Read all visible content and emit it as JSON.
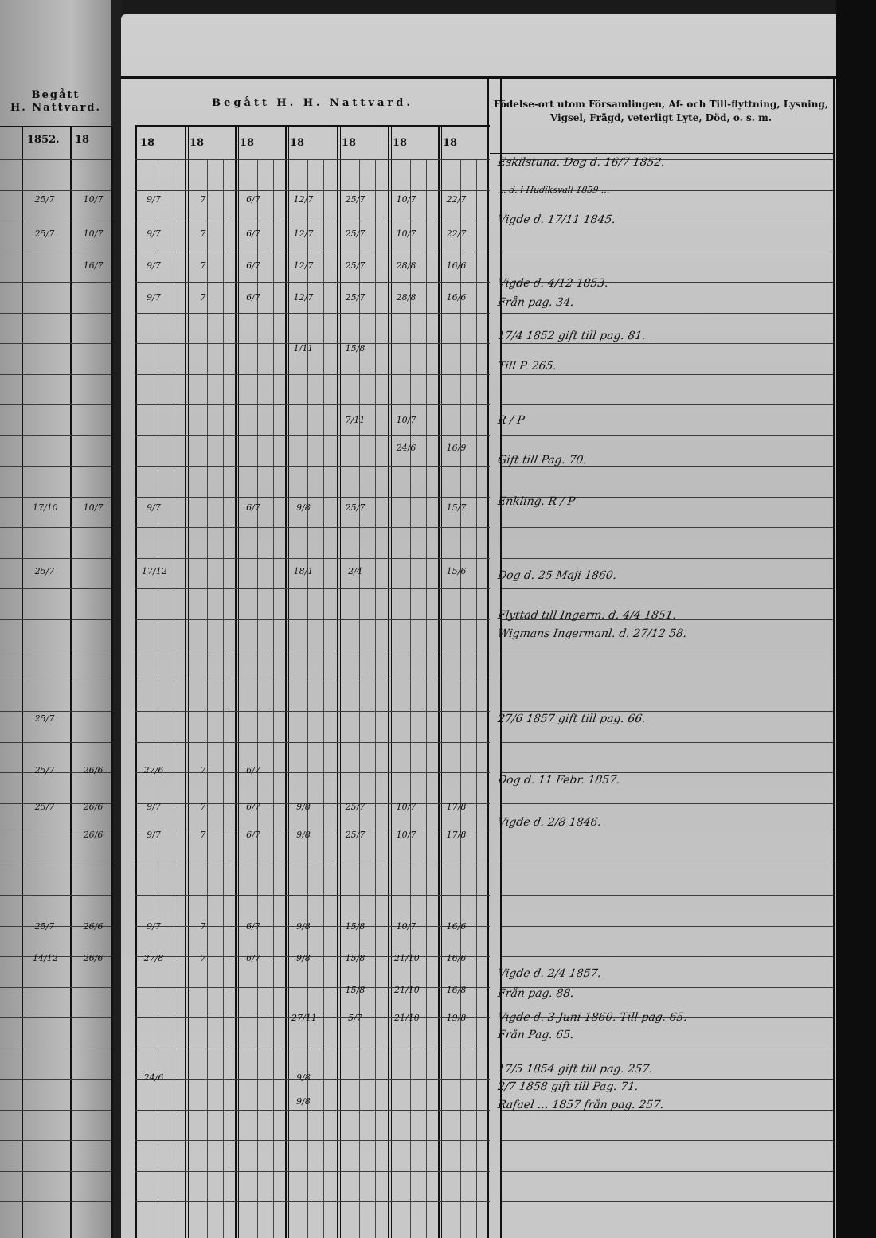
{
  "left_page": {
    "header_line1": "Begått",
    "header_line2": "H. Nattvard.",
    "years": [
      "1852.",
      "18"
    ]
  },
  "right_page": {
    "header": "Begått H. H. Nattvard.",
    "years": [
      "18",
      "18",
      "18",
      "18",
      "18",
      "18",
      "18"
    ],
    "notes_header_line1": "Födelse-ort utom Församlingen, Af- och Till-flyttning, Lysning,",
    "notes_header_line2": "Vigsel, Frägd, veterligt Lyte, Död, o. s. m."
  },
  "grid_rows": [
    {
      "left": [
        "25/7",
        "10/7"
      ],
      "cells": [
        "9/7",
        "7",
        "6/7",
        "12/7",
        "25/7",
        "10/7",
        "22/7"
      ]
    },
    {
      "left": [
        "25/7",
        "10/7"
      ],
      "cells": [
        "9/7",
        "7",
        "6/7",
        "12/7",
        "25/7",
        "10/7",
        "22/7"
      ]
    },
    {
      "left": [
        "",
        "16/7"
      ],
      "cells": [
        "9/7",
        "7",
        "6/7",
        "12/7",
        "25/7",
        "28/8",
        "16/6"
      ]
    },
    {
      "left": [
        "",
        ""
      ],
      "cells": [
        "9/7",
        "7",
        "6/7",
        "12/7",
        "25/7",
        "28/8",
        "16/6"
      ]
    },
    {
      "left": [
        "",
        ""
      ],
      "cells": [
        "",
        "",
        "",
        "1/11",
        "15/8",
        "",
        ""
      ]
    },
    {
      "left": [
        "",
        ""
      ],
      "cells": [
        "",
        "",
        "",
        "",
        "7/11",
        "10/7",
        ""
      ]
    },
    {
      "left": [
        "",
        ""
      ],
      "cells": [
        "",
        "",
        "",
        "",
        "",
        "24/6",
        "16/9"
      ]
    },
    {
      "left": [
        "17/10",
        "10/7"
      ],
      "cells": [
        "9/7",
        "",
        "6/7",
        "9/8",
        "25/7",
        "",
        "15/7"
      ]
    },
    {
      "left": [
        "25/7",
        ""
      ],
      "cells": [
        "17/12",
        "",
        "",
        "18/1",
        "2/4",
        "",
        "15/6"
      ]
    },
    {
      "left": [
        "25/7",
        ""
      ],
      "cells": [
        "",
        "",
        "",
        "",
        "",
        "",
        ""
      ]
    },
    {
      "left": [
        "25/7",
        "26/6"
      ],
      "cells": [
        "27/6",
        "7",
        "6/7",
        "",
        "",
        "",
        ""
      ]
    },
    {
      "left": [
        "25/7",
        "26/6"
      ],
      "cells": [
        "9/7",
        "7",
        "6/7",
        "9/8",
        "25/7",
        "10/7",
        "17/8"
      ]
    },
    {
      "left": [
        "",
        "26/6"
      ],
      "cells": [
        "9/7",
        "7",
        "6/7",
        "9/8",
        "25/7",
        "10/7",
        "17/8"
      ]
    },
    {
      "left": [
        "25/7",
        "26/6"
      ],
      "cells": [
        "9/7",
        "7",
        "6/7",
        "9/8",
        "15/8",
        "10/7",
        "16/6"
      ]
    },
    {
      "left": [
        "14/12",
        "26/6"
      ],
      "cells": [
        "27/8",
        "7",
        "6/7",
        "9/8",
        "15/8",
        "21/10",
        "16/6"
      ]
    },
    {
      "left": [
        "",
        ""
      ],
      "cells": [
        "",
        "",
        "",
        "",
        "15/8",
        "21/10",
        "16/8"
      ]
    },
    {
      "left": [
        "",
        ""
      ],
      "cells": [
        "",
        "",
        "",
        "27/11",
        "5/7",
        "21/10",
        "19/8"
      ]
    },
    {
      "left": [
        "",
        ""
      ],
      "cells": [
        "24/6",
        "",
        "",
        "9/8",
        "",
        "",
        ""
      ]
    },
    {
      "left": [
        "",
        ""
      ],
      "cells": [
        "",
        "",
        "",
        "9/8",
        "",
        "",
        ""
      ]
    }
  ],
  "notes": [
    "Eskilstuna. Dog d. 16/7 1852.",
    "… d. i Hudiksvall 1859 …",
    "Vigde d. 17/11 1845.",
    "Vigde d. 4/12 1853.",
    "Från pag. 34.",
    "17/4 1852 gift till pag. 81.",
    "Till P. 265.",
    "R / P",
    "Gift till Pag. 70.",
    "Enkling. R / P",
    "Dog d. 25 Maji 1860.",
    "Flyttad till Ingerm. d. 4/4 1851.",
    "Wigmans Ingermanl. d. 27/12 58.",
    "27/6 1857 gift till pag. 66.",
    "Dog d. 11 Febr. 1857.",
    "Vigde d. 2/8 1846.",
    "Vigde d. 2/4 1857.",
    "Från pag. 88.",
    "Vigde d. 3 Juni 1860. Till pag. 65.",
    "Från Pag. 65.",
    "17/5 1854 gift till pag. 257.",
    "2/7 1858 gift till Pag. 71.",
    "Rafael … 1857 från pag. 257."
  ]
}
